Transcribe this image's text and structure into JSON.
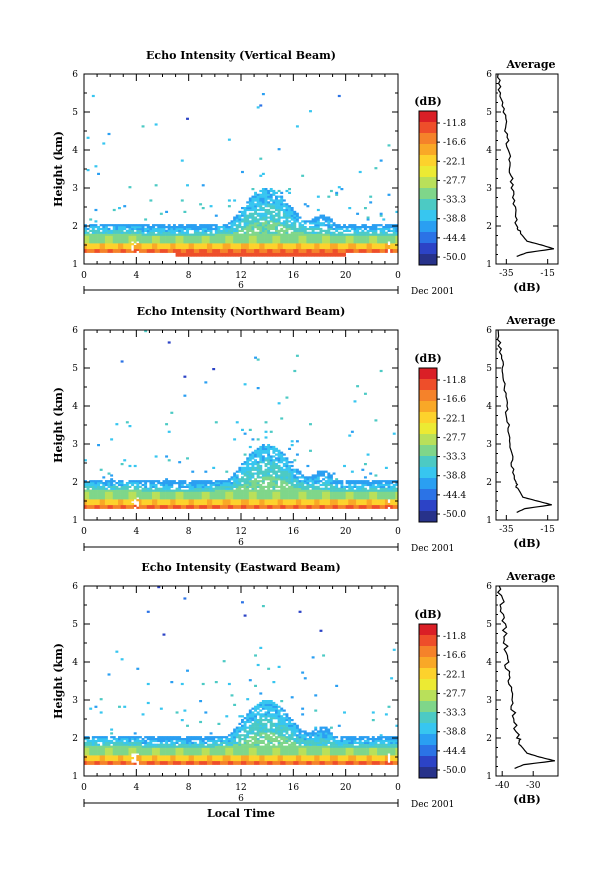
{
  "chart_data": [
    {
      "type": "heatmap",
      "title": "Echo Intensity (Vertical Beam)",
      "ylabel": "Height (km)",
      "xlabel": "",
      "x_ticks": [
        "0",
        "4",
        "8",
        "12",
        "16",
        "20",
        "0"
      ],
      "y_ticks": [
        "1",
        "2",
        "3",
        "4",
        "5",
        "6"
      ],
      "xlim": [
        0,
        24
      ],
      "ylim": [
        1,
        6
      ],
      "date_row": {
        "day": "6",
        "label": "Dec 2001"
      },
      "colorbar": {
        "unit": "(dB)",
        "labels": [
          "-11.8",
          "-16.6",
          "-22.1",
          "-27.7",
          "-33.3",
          "-38.8",
          "-44.4",
          "-50.0"
        ]
      },
      "profile": {
        "title": "Average",
        "xlabel": "(dB)",
        "x_ticks": [
          "-35",
          "-15"
        ],
        "xlim": [
          -40,
          -10
        ],
        "y_ticks": [
          "1",
          "2",
          "3",
          "4",
          "5",
          "6"
        ],
        "points": [
          [
            -30,
            1.2
          ],
          [
            -25,
            1.3
          ],
          [
            -12,
            1.4
          ],
          [
            -18,
            1.5
          ],
          [
            -25,
            1.6
          ],
          [
            -28,
            1.8
          ],
          [
            -30,
            2.0
          ],
          [
            -31,
            2.5
          ],
          [
            -32,
            3.0
          ],
          [
            -33,
            3.5
          ],
          [
            -34,
            4.0
          ],
          [
            -35,
            4.5
          ],
          [
            -36,
            5.0
          ],
          [
            -38,
            5.5
          ],
          [
            -39,
            6.0
          ]
        ]
      }
    },
    {
      "type": "heatmap",
      "title": "Echo Intensity (Northward Beam)",
      "ylabel": "Height (km)",
      "xlabel": "",
      "x_ticks": [
        "0",
        "4",
        "8",
        "12",
        "16",
        "20",
        "0"
      ],
      "y_ticks": [
        "1",
        "2",
        "3",
        "4",
        "5",
        "6"
      ],
      "xlim": [
        0,
        24
      ],
      "ylim": [
        1,
        6
      ],
      "date_row": {
        "day": "6",
        "label": "Dec 2001"
      },
      "colorbar": {
        "unit": "(dB)",
        "labels": [
          "-11.8",
          "-16.6",
          "-22.1",
          "-27.7",
          "-33.3",
          "-38.8",
          "-44.4",
          "-50.0"
        ]
      },
      "profile": {
        "title": "Average",
        "xlabel": "(dB)",
        "x_ticks": [
          "-35",
          "-15"
        ],
        "xlim": [
          -40,
          -10
        ],
        "y_ticks": [
          "1",
          "2",
          "3",
          "4",
          "5",
          "6"
        ],
        "points": [
          [
            -30,
            1.2
          ],
          [
            -26,
            1.3
          ],
          [
            -13,
            1.4
          ],
          [
            -20,
            1.5
          ],
          [
            -27,
            1.6
          ],
          [
            -29,
            1.8
          ],
          [
            -31,
            2.0
          ],
          [
            -32,
            2.5
          ],
          [
            -33,
            3.0
          ],
          [
            -34,
            3.5
          ],
          [
            -35,
            4.0
          ],
          [
            -36,
            4.5
          ],
          [
            -37,
            5.0
          ],
          [
            -38,
            5.5
          ],
          [
            -39,
            6.0
          ]
        ]
      }
    },
    {
      "type": "heatmap",
      "title": "Echo Intensity (Eastward Beam)",
      "ylabel": "Height (km)",
      "xlabel": "Local Time",
      "x_ticks": [
        "0",
        "4",
        "8",
        "12",
        "16",
        "20",
        "0"
      ],
      "y_ticks": [
        "1",
        "2",
        "3",
        "4",
        "5",
        "6"
      ],
      "xlim": [
        0,
        24
      ],
      "ylim": [
        1,
        6
      ],
      "date_row": {
        "day": "6",
        "label": "Dec 2001"
      },
      "colorbar": {
        "unit": "(dB)",
        "labels": [
          "-11.8",
          "-16.6",
          "-22.1",
          "-27.7",
          "-33.3",
          "-38.8",
          "-44.4",
          "-50.0"
        ]
      },
      "profile": {
        "title": "Average",
        "xlabel": "(dB)",
        "x_ticks": [
          "-40",
          "-30"
        ],
        "xlim": [
          -42,
          -22
        ],
        "y_ticks": [
          "1",
          "2",
          "3",
          "4",
          "5",
          "6"
        ],
        "points": [
          [
            -36,
            1.2
          ],
          [
            -33,
            1.3
          ],
          [
            -23,
            1.4
          ],
          [
            -28,
            1.5
          ],
          [
            -32,
            1.6
          ],
          [
            -34,
            1.8
          ],
          [
            -35,
            2.0
          ],
          [
            -36,
            2.5
          ],
          [
            -37,
            3.0
          ],
          [
            -38,
            3.5
          ],
          [
            -38.5,
            4.0
          ],
          [
            -39,
            4.5
          ],
          [
            -39.5,
            5.0
          ],
          [
            -40,
            5.5
          ],
          [
            -41,
            6.0
          ]
        ]
      }
    }
  ],
  "palette": [
    "#da1f26",
    "#ee4e2a",
    "#f5822a",
    "#f9a827",
    "#fdd22c",
    "#ecea33",
    "#b9e05a",
    "#7fd68a",
    "#4ccac4",
    "#37c6f0",
    "#2a9ff2",
    "#2b73e6",
    "#2c43c6",
    "#27328a"
  ]
}
